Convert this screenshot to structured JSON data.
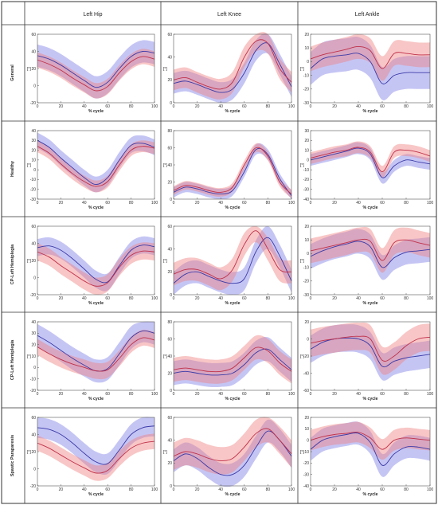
{
  "columns": [
    "Left Hip",
    "Left Knee",
    "Left Ankle"
  ],
  "rows": [
    "General",
    "Healthy",
    "CP-Left Hemiplegia",
    "CP-Left Hemiplegia",
    "Spastic Paraparesis"
  ],
  "colors": {
    "blue_line": "#3a3aa8",
    "blue_band": "#7f7fe6",
    "red_line": "#c0304a",
    "red_band": "#f08080"
  },
  "chart_data": [
    {
      "type": "line",
      "row": "General",
      "column": "Left Hip",
      "xlabel": "% cycle",
      "ylabel": "[°]",
      "xlim": [
        0,
        100
      ],
      "ylim": [
        -20,
        60
      ],
      "xticks": [
        0,
        20,
        40,
        60,
        80,
        100
      ],
      "yticks": [
        -20,
        0,
        20,
        40,
        60
      ],
      "x": [
        0,
        10,
        20,
        30,
        40,
        50,
        60,
        70,
        80,
        90,
        100
      ],
      "series": [
        {
          "color": "blue",
          "values": [
            35,
            31,
            24,
            15,
            6,
            -2,
            4,
            20,
            34,
            40,
            38
          ],
          "sd": 13
        },
        {
          "color": "red",
          "values": [
            30,
            25,
            18,
            9,
            1,
            -6,
            -1,
            15,
            28,
            34,
            31
          ],
          "sd": 9
        }
      ]
    },
    {
      "type": "line",
      "row": "General",
      "column": "Left Knee",
      "xlabel": "% cycle",
      "ylabel": "[°]",
      "xlim": [
        0,
        100
      ],
      "ylim": [
        0,
        60
      ],
      "xticks": [
        0,
        20,
        40,
        60,
        80,
        100
      ],
      "yticks": [
        0,
        20,
        40,
        60
      ],
      "x": [
        0,
        10,
        20,
        30,
        40,
        50,
        60,
        70,
        80,
        90,
        100
      ],
      "series": [
        {
          "color": "blue",
          "values": [
            17,
            19,
            16,
            12,
            9,
            12,
            26,
            46,
            52,
            34,
            14
          ],
          "sd": 9
        },
        {
          "color": "red",
          "values": [
            20,
            22,
            18,
            14,
            12,
            18,
            40,
            54,
            52,
            30,
            18
          ],
          "sd": 9
        }
      ]
    },
    {
      "type": "line",
      "row": "General",
      "column": "Left Ankle",
      "xlabel": "% cycle",
      "ylabel": "[°]",
      "xlim": [
        0,
        100
      ],
      "ylim": [
        -30,
        20
      ],
      "xticks": [
        0,
        20,
        40,
        60,
        80,
        100
      ],
      "yticks": [
        -30,
        -20,
        -10,
        0,
        10,
        20
      ],
      "x": [
        0,
        10,
        20,
        30,
        40,
        50,
        60,
        70,
        80,
        90,
        100
      ],
      "series": [
        {
          "color": "blue",
          "values": [
            -5,
            2,
            4,
            5,
            6,
            0,
            -16,
            -10,
            -8,
            -8,
            -8
          ],
          "sd": 12
        },
        {
          "color": "red",
          "values": [
            2,
            5,
            7,
            9,
            11,
            8,
            -5,
            6,
            6,
            5,
            5
          ],
          "sd": 9
        }
      ]
    },
    {
      "type": "line",
      "row": "Healthy",
      "column": "Left Hip",
      "xlabel": "% cycle",
      "ylabel": "[°]",
      "xlim": [
        0,
        100
      ],
      "ylim": [
        -30,
        40
      ],
      "xticks": [
        0,
        20,
        40,
        60,
        80,
        100
      ],
      "yticks": [
        -30,
        -20,
        -10,
        0,
        10,
        20,
        30,
        40
      ],
      "x": [
        0,
        10,
        20,
        30,
        40,
        50,
        60,
        70,
        80,
        90,
        100
      ],
      "series": [
        {
          "color": "blue",
          "values": [
            30,
            23,
            12,
            2,
            -8,
            -15,
            -8,
            10,
            25,
            27,
            23
          ],
          "sd": 8
        },
        {
          "color": "red",
          "values": [
            24,
            17,
            6,
            -4,
            -12,
            -17,
            -12,
            5,
            20,
            24,
            22
          ],
          "sd": 6
        }
      ]
    },
    {
      "type": "line",
      "row": "Healthy",
      "column": "Left Knee",
      "xlabel": "% cycle",
      "ylabel": "[°]",
      "xlim": [
        0,
        100
      ],
      "ylim": [
        0,
        80
      ],
      "xticks": [
        0,
        20,
        40,
        60,
        80,
        100
      ],
      "yticks": [
        0,
        20,
        40,
        60,
        80
      ],
      "x": [
        0,
        10,
        20,
        30,
        40,
        50,
        60,
        70,
        80,
        90,
        100
      ],
      "series": [
        {
          "color": "blue",
          "values": [
            8,
            14,
            12,
            8,
            6,
            10,
            32,
            58,
            52,
            24,
            4
          ],
          "sd": 6
        },
        {
          "color": "red",
          "values": [
            10,
            16,
            14,
            10,
            8,
            14,
            40,
            60,
            50,
            20,
            6
          ],
          "sd": 5
        }
      ]
    },
    {
      "type": "line",
      "row": "Healthy",
      "column": "Left Ankle",
      "xlabel": "% cycle",
      "ylabel": "[°]",
      "xlim": [
        0,
        100
      ],
      "ylim": [
        -40,
        30
      ],
      "xticks": [
        0,
        20,
        40,
        60,
        80,
        100
      ],
      "yticks": [
        -40,
        -30,
        -20,
        -10,
        0,
        10,
        20,
        30
      ],
      "x": [
        0,
        10,
        20,
        30,
        40,
        50,
        60,
        70,
        80,
        90,
        100
      ],
      "series": [
        {
          "color": "blue",
          "values": [
            0,
            3,
            6,
            9,
            12,
            6,
            -18,
            -6,
            0,
            -2,
            -4
          ],
          "sd": 6
        },
        {
          "color": "red",
          "values": [
            2,
            5,
            8,
            10,
            13,
            8,
            -12,
            8,
            10,
            8,
            4
          ],
          "sd": 6
        }
      ]
    },
    {
      "type": "line",
      "row": "CP-Left Hemiplegia",
      "column": "Left Hip",
      "xlabel": "% cycle",
      "ylabel": "[°]",
      "xlim": [
        0,
        100
      ],
      "ylim": [
        -20,
        60
      ],
      "xticks": [
        0,
        20,
        40,
        60,
        80,
        100
      ],
      "yticks": [
        -20,
        0,
        20,
        40,
        60
      ],
      "x": [
        0,
        10,
        20,
        30,
        40,
        50,
        60,
        70,
        80,
        90,
        100
      ],
      "series": [
        {
          "color": "blue",
          "values": [
            35,
            37,
            32,
            22,
            10,
            -2,
            -5,
            14,
            32,
            38,
            36
          ],
          "sd": 10
        },
        {
          "color": "red",
          "values": [
            30,
            24,
            14,
            5,
            -4,
            -10,
            -6,
            12,
            26,
            31,
            30
          ],
          "sd": 10
        }
      ]
    },
    {
      "type": "line",
      "row": "CP-Left Hemiplegia",
      "column": "Left Knee",
      "xlabel": "% cycle",
      "ylabel": "[°]",
      "xlim": [
        0,
        100
      ],
      "ylim": [
        0,
        60
      ],
      "xticks": [
        0,
        20,
        40,
        60,
        80,
        100
      ],
      "yticks": [
        0,
        20,
        40,
        60
      ],
      "x": [
        0,
        10,
        20,
        30,
        40,
        50,
        60,
        70,
        80,
        90,
        100
      ],
      "series": [
        {
          "color": "blue",
          "values": [
            10,
            18,
            20,
            16,
            12,
            10,
            14,
            38,
            50,
            34,
            12
          ],
          "sd": 10
        },
        {
          "color": "red",
          "values": [
            18,
            22,
            22,
            18,
            14,
            22,
            44,
            56,
            40,
            22,
            20
          ],
          "sd": 10
        }
      ]
    },
    {
      "type": "line",
      "row": "CP-Left Hemiplegia",
      "column": "Left Ankle",
      "xlabel": "% cycle",
      "ylabel": "[°]",
      "xlim": [
        0,
        100
      ],
      "ylim": [
        -30,
        20
      ],
      "xticks": [
        0,
        20,
        40,
        60,
        80,
        100
      ],
      "yticks": [
        -30,
        -20,
        -10,
        0,
        10,
        20
      ],
      "x": [
        0,
        10,
        20,
        30,
        40,
        50,
        60,
        70,
        80,
        90,
        100
      ],
      "series": [
        {
          "color": "blue",
          "values": [
            -2,
            2,
            5,
            7,
            9,
            5,
            -10,
            -3,
            1,
            2,
            3
          ],
          "sd": 9
        },
        {
          "color": "red",
          "values": [
            2,
            4,
            6,
            8,
            10,
            9,
            -5,
            8,
            10,
            8,
            6
          ],
          "sd": 9
        }
      ]
    },
    {
      "type": "line",
      "row": "CP-Left Hemiplegia",
      "column": "Left Hip",
      "xlabel": "% cycle",
      "ylabel": "[°]",
      "xlim": [
        0,
        100
      ],
      "ylim": [
        -20,
        40
      ],
      "xticks": [
        0,
        20,
        40,
        60,
        80,
        100
      ],
      "yticks": [
        -20,
        -10,
        0,
        10,
        20,
        30,
        40
      ],
      "x": [
        0,
        10,
        20,
        30,
        40,
        50,
        60,
        70,
        80,
        90,
        100
      ],
      "series": [
        {
          "color": "blue",
          "values": [
            28,
            22,
            15,
            8,
            2,
            -3,
            -1,
            12,
            26,
            32,
            30
          ],
          "sd": 10
        },
        {
          "color": "red",
          "values": [
            18,
            12,
            7,
            3,
            0,
            -3,
            -2,
            8,
            20,
            26,
            24
          ],
          "sd": 7
        }
      ]
    },
    {
      "type": "line",
      "row": "CP-Left Hemiplegia",
      "column": "Left Knee",
      "xlabel": "% cycle",
      "ylabel": "[°]",
      "xlim": [
        0,
        100
      ],
      "ylim": [
        0,
        80
      ],
      "xticks": [
        0,
        20,
        40,
        60,
        80,
        100
      ],
      "yticks": [
        0,
        20,
        40,
        60,
        80
      ],
      "x": [
        0,
        10,
        20,
        30,
        40,
        50,
        60,
        70,
        80,
        90,
        100
      ],
      "series": [
        {
          "color": "blue",
          "values": [
            20,
            22,
            20,
            18,
            18,
            20,
            30,
            44,
            48,
            36,
            24
          ],
          "sd": 14
        },
        {
          "color": "red",
          "values": [
            24,
            26,
            24,
            22,
            22,
            26,
            38,
            50,
            46,
            32,
            22
          ],
          "sd": 14
        }
      ]
    },
    {
      "type": "line",
      "row": "CP-Left Hemiplegia",
      "column": "Left Ankle",
      "xlabel": "% cycle",
      "ylabel": "[°]",
      "xlim": [
        0,
        100
      ],
      "ylim": [
        -60,
        20
      ],
      "xticks": [
        0,
        20,
        40,
        60,
        80,
        100
      ],
      "yticks": [
        -60,
        -40,
        -20,
        0,
        20
      ],
      "x": [
        0,
        10,
        20,
        30,
        40,
        50,
        60,
        70,
        80,
        90,
        100
      ],
      "series": [
        {
          "color": "blue",
          "values": [
            -12,
            -4,
            0,
            1,
            0,
            -8,
            -32,
            -26,
            -22,
            -20,
            -18
          ],
          "sd": 16
        },
        {
          "color": "red",
          "values": [
            -5,
            -2,
            0,
            2,
            3,
            0,
            -25,
            -20,
            -8,
            0,
            2
          ],
          "sd": 16
        }
      ]
    },
    {
      "type": "line",
      "row": "Spastic Paraparesis",
      "column": "Left Hip",
      "xlabel": "% cycle",
      "ylabel": "[°]",
      "xlim": [
        0,
        100
      ],
      "ylim": [
        -20,
        60
      ],
      "xticks": [
        0,
        20,
        40,
        60,
        80,
        100
      ],
      "yticks": [
        -20,
        0,
        20,
        40,
        60
      ],
      "x": [
        0,
        10,
        20,
        30,
        40,
        50,
        60,
        70,
        80,
        90,
        100
      ],
      "series": [
        {
          "color": "blue",
          "values": [
            48,
            46,
            40,
            30,
            18,
            8,
            6,
            22,
            40,
            48,
            50
          ],
          "sd": 12
        },
        {
          "color": "red",
          "values": [
            30,
            24,
            16,
            8,
            1,
            -5,
            -2,
            12,
            24,
            30,
            32
          ],
          "sd": 9
        }
      ]
    },
    {
      "type": "line",
      "row": "Spastic Paraparesis",
      "column": "Left Knee",
      "xlabel": "% cycle",
      "ylabel": "[°]",
      "xlim": [
        0,
        100
      ],
      "ylim": [
        0,
        60
      ],
      "xticks": [
        0,
        20,
        40,
        60,
        80,
        100
      ],
      "yticks": [
        0,
        20,
        40,
        60
      ],
      "x": [
        0,
        10,
        20,
        30,
        40,
        50,
        60,
        70,
        80,
        90,
        100
      ],
      "series": [
        {
          "color": "blue",
          "values": [
            22,
            28,
            24,
            16,
            10,
            10,
            18,
            34,
            48,
            40,
            26
          ],
          "sd": 10
        },
        {
          "color": "red",
          "values": [
            26,
            30,
            28,
            24,
            22,
            24,
            34,
            46,
            50,
            40,
            28
          ],
          "sd": 12
        }
      ]
    },
    {
      "type": "line",
      "row": "Spastic Paraparesis",
      "column": "Left Ankle",
      "xlabel": "% cycle",
      "ylabel": "[°]",
      "xlim": [
        0,
        100
      ],
      "ylim": [
        -40,
        20
      ],
      "xticks": [
        0,
        20,
        40,
        60,
        80,
        100
      ],
      "yticks": [
        -40,
        -30,
        -20,
        -10,
        0,
        10,
        20
      ],
      "x": [
        0,
        10,
        20,
        30,
        40,
        50,
        60,
        70,
        80,
        90,
        100
      ],
      "series": [
        {
          "color": "blue",
          "values": [
            -8,
            0,
            3,
            5,
            6,
            -2,
            -22,
            -12,
            -6,
            -6,
            -8
          ],
          "sd": 10
        },
        {
          "color": "red",
          "values": [
            0,
            3,
            5,
            6,
            7,
            2,
            -8,
            0,
            2,
            1,
            0
          ],
          "sd": 9
        }
      ]
    }
  ]
}
